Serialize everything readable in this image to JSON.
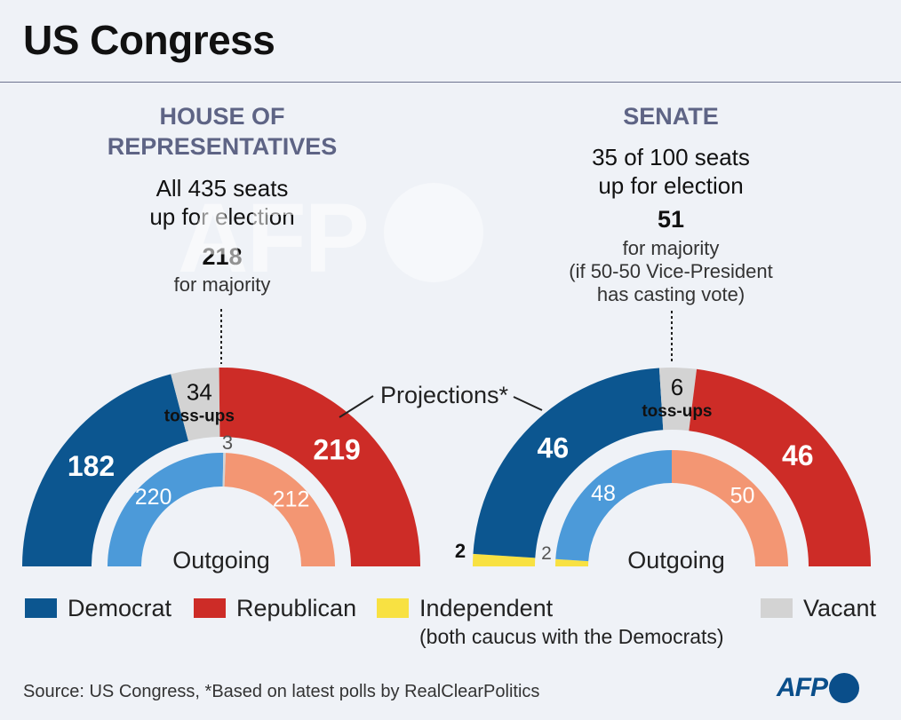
{
  "title": "US Congress",
  "house": {
    "heading_line1": "HOUSE OF",
    "heading_line2": "REPRESENTATIVES",
    "seats_line1": "All 435 seats",
    "seats_line2": "up for election",
    "majority_number": "218",
    "majority_label": "for majority"
  },
  "senate": {
    "heading": "SENATE",
    "seats_line1": "35 of 100 seats",
    "seats_line2": "up for election",
    "majority_number": "51",
    "majority_label": "for majority",
    "note_line1": "(if 50-50 Vice-President",
    "note_line2": "has casting vote)"
  },
  "projections_label": "Projections*",
  "outgoing_label": "Outgoing",
  "tossups_label": "toss-ups",
  "colors": {
    "democrat": "#0c5690",
    "republican": "#cd2c27",
    "independent": "#f8e142",
    "vacant": "#d3d3d3",
    "democrat_outgoing": "#4c9ad9",
    "republican_outgoing": "#f39673"
  },
  "chart_data": [
    {
      "type": "parliament-semicircle",
      "chamber": "House of Representatives",
      "ring": "projections",
      "segments": [
        {
          "party": "Democrat",
          "seats": 182,
          "label": "182"
        },
        {
          "party": "Toss-ups",
          "seats": 34,
          "label": "34"
        },
        {
          "party": "Republican",
          "seats": 219,
          "label": "219"
        }
      ]
    },
    {
      "type": "parliament-semicircle",
      "chamber": "House of Representatives",
      "ring": "outgoing",
      "segments": [
        {
          "party": "Democrat",
          "seats": 220,
          "label": "220"
        },
        {
          "party": "Vacant",
          "seats": 3,
          "label": "3"
        },
        {
          "party": "Republican",
          "seats": 212,
          "label": "212"
        }
      ]
    },
    {
      "type": "parliament-semicircle",
      "chamber": "Senate",
      "ring": "projections",
      "segments": [
        {
          "party": "Independent",
          "seats": 2,
          "label": "2"
        },
        {
          "party": "Democrat",
          "seats": 46,
          "label": "46"
        },
        {
          "party": "Toss-ups",
          "seats": 6,
          "label": "6"
        },
        {
          "party": "Republican",
          "seats": 46,
          "label": "46"
        }
      ]
    },
    {
      "type": "parliament-semicircle",
      "chamber": "Senate",
      "ring": "outgoing",
      "segments": [
        {
          "party": "Independent",
          "seats": 2,
          "label": "2"
        },
        {
          "party": "Democrat",
          "seats": 48,
          "label": "48"
        },
        {
          "party": "Republican",
          "seats": 50,
          "label": "50"
        }
      ]
    }
  ],
  "legend": {
    "democrat": "Democrat",
    "republican": "Republican",
    "independent": "Independent",
    "independent_note": "(both caucus with the Democrats)",
    "vacant": "Vacant"
  },
  "source": "Source: US Congress, *Based on latest polls by RealClearPolitics",
  "logo": "AFP"
}
